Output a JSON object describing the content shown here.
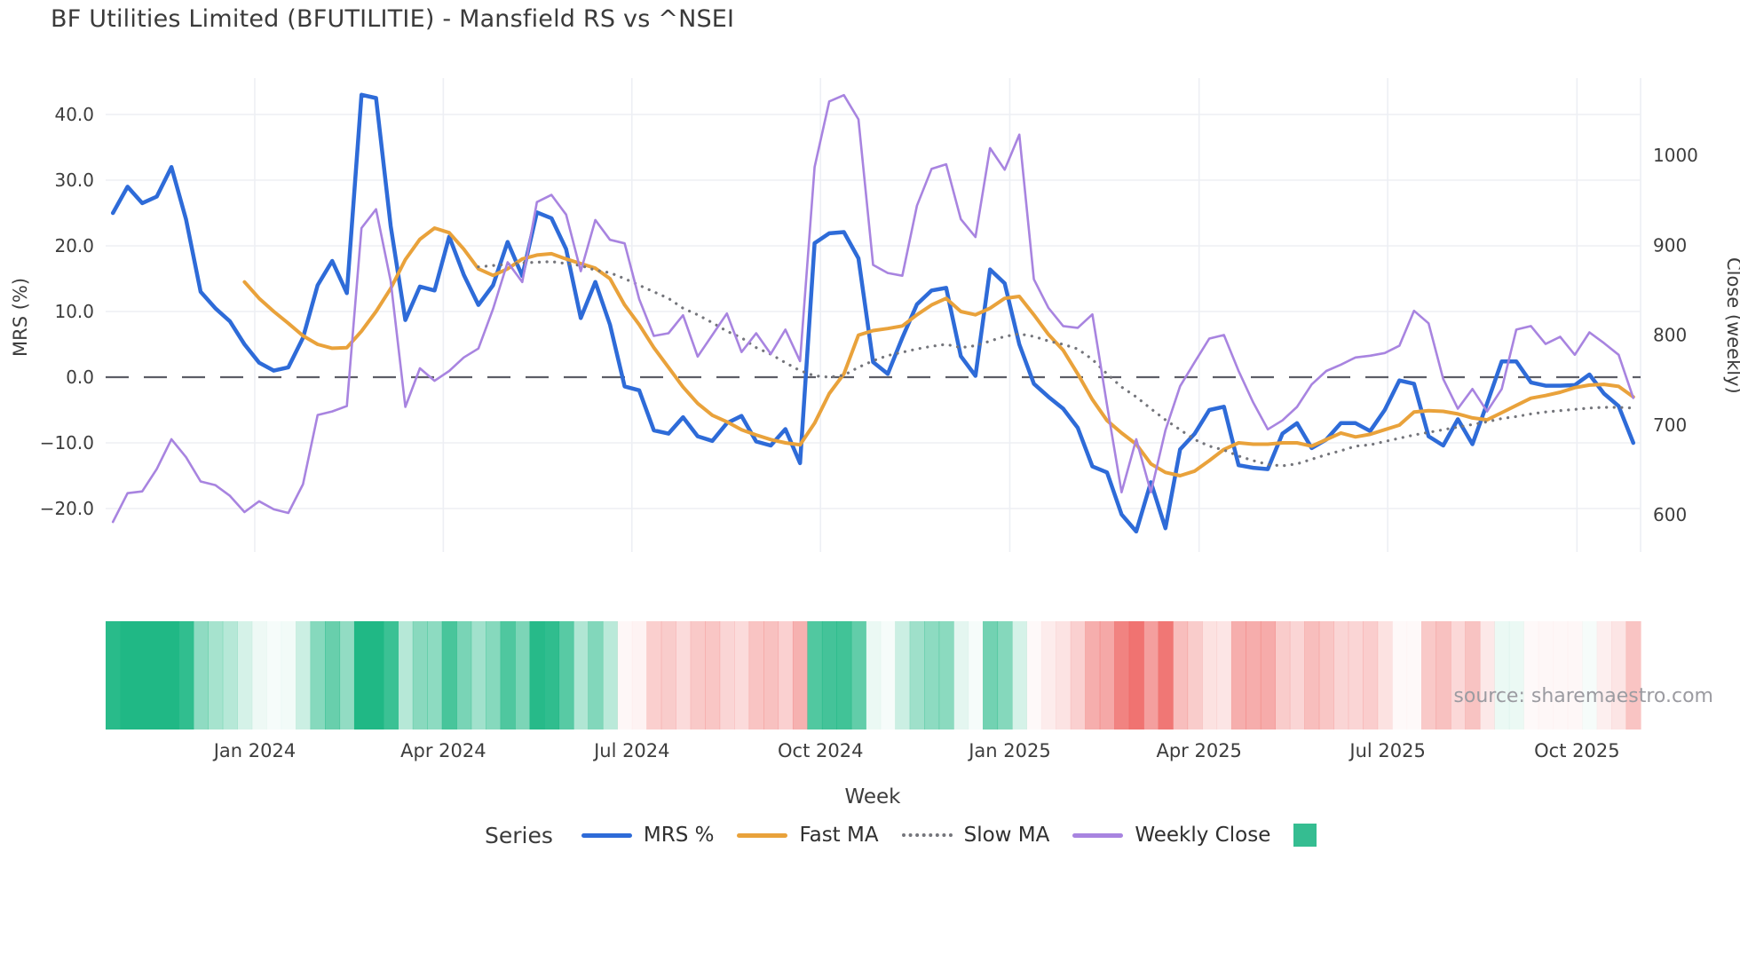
{
  "title": "BF Utilities Limited (BFUTILITIE) - Mansfield RS vs ^NSEI",
  "source_note": "source: sharemaestro.com",
  "colors": {
    "mrs_blue": "#2e6bd8",
    "fast_ma_orange": "#e9a23b",
    "slow_ma_gray": "#74757b",
    "weekly_close_purple": "#a884e0",
    "heat_green": "#20b885",
    "heat_red": "#ee6462",
    "legend_square_green": "#35bd91",
    "gridline": "#edeff4",
    "zero_line": "#5c5d66",
    "tick_text": "#3d3d3d",
    "source_text": "#9b9ba1"
  },
  "chart_data": {
    "type": "line",
    "title": "BF Utilities Limited (BFUTILITIE) - Mansfield RS vs ^NSEI",
    "xlabel": "Week",
    "grid": true,
    "weeks_total": 105,
    "x_tick_labels": [
      "Jan 2024",
      "Apr 2024",
      "Jul 2024",
      "Oct 2024",
      "Jan 2025",
      "Apr 2025",
      "Jul 2025",
      "Oct 2025"
    ],
    "x_tick_weeks": [
      9.7,
      22.6,
      35.5,
      48.4,
      61.35,
      74.3,
      87.2,
      100.15
    ],
    "left_axis": {
      "label": "MRS (%)",
      "ticks": [
        40,
        30,
        20,
        10,
        0,
        -10,
        -20
      ],
      "tick_labels": [
        "40.0",
        "30.0",
        "20.0",
        "10.0",
        "0.0",
        "−10.0",
        "−20.0"
      ],
      "zero_line_dashed": true
    },
    "right_axis": {
      "label": "Close (weekly)",
      "ticks": [
        1000,
        900,
        800,
        700,
        600
      ],
      "tick_labels": [
        "1000",
        "900",
        "800",
        "700",
        "600"
      ]
    },
    "legend": {
      "title": "Series",
      "items": [
        "MRS %",
        "Fast MA",
        "Slow MA",
        "Weekly Close"
      ],
      "extra_swatch_color": "#35bd91",
      "position": "bottom"
    },
    "heatmap_strip": {
      "derived_from": "MRS %",
      "positive_color": "#20b885",
      "negative_color": "#ee6462",
      "intensity_scale_max": 26
    },
    "series": [
      {
        "name": "MRS %",
        "axis": "left",
        "color": "#2e6bd8",
        "style": "solid",
        "width": 4.5,
        "values": [
          25,
          29,
          26.5,
          27.5,
          32,
          24,
          13,
          10.5,
          8.5,
          5,
          2.2,
          1,
          1.5,
          6,
          14,
          17.7,
          12.8,
          43,
          42.5,
          23,
          8.7,
          13.8,
          13.2,
          21.4,
          15.6,
          11,
          14,
          20.6,
          15.4,
          25.1,
          24.2,
          19.5,
          9,
          14.5,
          8,
          -1.4,
          -2,
          -8.1,
          -8.6,
          -6.1,
          -9,
          -9.7,
          -7,
          -5.9,
          -9.8,
          -10.4,
          -7.9,
          -13.1,
          20.4,
          21.9,
          22.1,
          18.1,
          2.3,
          0.5,
          6,
          11.1,
          13.2,
          13.6,
          3.2,
          0.2,
          16.4,
          14.3,
          5,
          -1,
          -3,
          -4.8,
          -7.7,
          -13.6,
          -14.5,
          -20.9,
          -23.5,
          -16,
          -23,
          -11,
          -8.6,
          -5,
          -4.5,
          -13.4,
          -13.8,
          -14,
          -8.6,
          -7,
          -10.8,
          -9.5,
          -7,
          -7,
          -8.2,
          -5,
          -0.5,
          -1,
          -9,
          -10.4,
          -6.4,
          -10.2,
          -4,
          2.4,
          2.4,
          -0.8,
          -1.3,
          -1.3,
          -1.2,
          0.4,
          -2.5,
          -4.4,
          -10
        ]
      },
      {
        "name": "Fast MA",
        "axis": "left",
        "color": "#e9a23b",
        "style": "solid",
        "width": 4,
        "values": [
          null,
          null,
          null,
          null,
          null,
          null,
          null,
          null,
          null,
          14.5,
          12,
          10,
          8.2,
          6.3,
          5,
          4.4,
          4.5,
          7,
          10,
          13.5,
          17.9,
          21,
          22.7,
          22,
          19.5,
          16.5,
          15.5,
          16.5,
          18,
          18.6,
          18.8,
          18,
          17.3,
          16.6,
          15,
          11,
          8,
          4.5,
          1.5,
          -1.5,
          -4,
          -5.8,
          -6.8,
          -8,
          -8.8,
          -9.5,
          -10,
          -10.3,
          -7,
          -2.5,
          0.5,
          6.4,
          7.1,
          7.4,
          7.8,
          9.5,
          11,
          12,
          10,
          9.5,
          10.5,
          12,
          12.3,
          9.5,
          6.5,
          4.1,
          0.5,
          -3.4,
          -6.6,
          -8.5,
          -10.2,
          -13.2,
          -14.5,
          -15,
          -14.3,
          -12.7,
          -11,
          -10,
          -10.2,
          -10.2,
          -10,
          -10,
          -10.5,
          -9.5,
          -8.5,
          -9.1,
          -8.7,
          -8,
          -7.3,
          -5.3,
          -5.1,
          -5.2,
          -5.6,
          -6.2,
          -6.5,
          -5.4,
          -4.3,
          -3.2,
          -2.8,
          -2.3,
          -1.6,
          -1.2,
          -1.1,
          -1.4,
          -3
        ]
      },
      {
        "name": "Slow MA",
        "axis": "left",
        "color": "#74757b",
        "style": "dotted",
        "width": 3.2,
        "values": [
          null,
          null,
          null,
          null,
          null,
          null,
          null,
          null,
          null,
          null,
          null,
          null,
          null,
          null,
          null,
          null,
          null,
          null,
          null,
          null,
          null,
          null,
          null,
          null,
          null,
          16.8,
          17,
          17.2,
          17.4,
          17.5,
          17.6,
          17.3,
          17,
          16.3,
          15.9,
          15,
          14,
          13,
          12,
          10.5,
          9.5,
          8.3,
          7,
          6,
          4.5,
          3.5,
          2.2,
          1,
          0.2,
          0,
          0.3,
          1.5,
          2.5,
          3.3,
          3.8,
          4.3,
          4.7,
          5,
          4.5,
          4.8,
          5.5,
          6.2,
          6.6,
          6.2,
          5.5,
          5,
          4.3,
          2.7,
          0.5,
          -1.5,
          -3,
          -4.8,
          -6.5,
          -8,
          -9.5,
          -10.5,
          -11.1,
          -12,
          -12.7,
          -13.3,
          -13.5,
          -13.2,
          -12.5,
          -11.8,
          -11.2,
          -10.5,
          -10.3,
          -9.8,
          -9.3,
          -8.8,
          -8.4,
          -8,
          -7.6,
          -7.2,
          -6.8,
          -6.3,
          -6,
          -5.6,
          -5.3,
          -5.1,
          -4.9,
          -4.7,
          -4.6,
          -4.6,
          -4.7
        ]
      },
      {
        "name": "Weekly Close",
        "axis": "right",
        "color": "#a884e0",
        "style": "solid",
        "width": 2.6,
        "values": [
          592,
          624,
          626,
          651,
          684,
          664,
          637,
          633,
          621,
          603,
          615,
          606,
          602,
          634,
          711,
          715,
          721,
          919,
          940,
          860,
          720,
          763,
          749,
          760,
          775,
          785,
          829,
          881,
          859,
          948,
          956,
          934,
          871,
          928,
          906,
          902,
          840,
          799,
          802,
          822,
          776,
          800,
          824,
          781,
          802,
          779,
          806,
          771,
          987,
          1060,
          1067,
          1040,
          878,
          869,
          866,
          944,
          985,
          990,
          929,
          909,
          1008,
          984,
          1023,
          862,
          830,
          810,
          808,
          823,
          722,
          625,
          684,
          625,
          694,
          743,
          770,
          796,
          800,
          760,
          725,
          695,
          705,
          720,
          745,
          760,
          767,
          775,
          777,
          780,
          788,
          827,
          813,
          751,
          718,
          740,
          715,
          740,
          806,
          810,
          790,
          798,
          778,
          803,
          791,
          778,
          730
        ]
      }
    ]
  }
}
